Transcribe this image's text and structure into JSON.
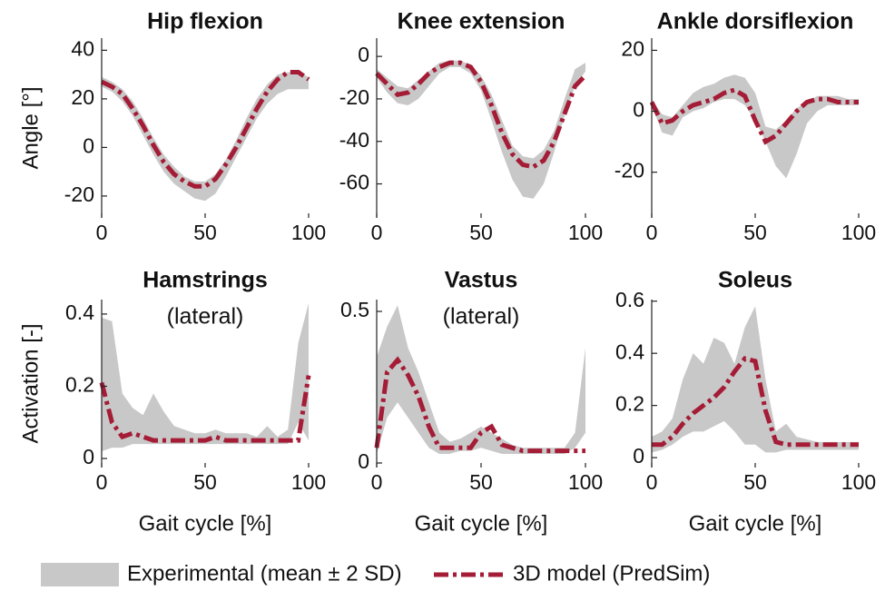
{
  "legend": [
    {
      "name": "Experimental (mean ± 2 SD)",
      "color": "#c8c8c8"
    },
    {
      "name": "3D model (PredSim)",
      "color": "#a51c36"
    }
  ],
  "chart_data": [
    {
      "type": "line",
      "title": "Hip flexion",
      "ylabel": "Angle [°]",
      "x": [
        0,
        5,
        10,
        15,
        20,
        25,
        30,
        35,
        40,
        45,
        50,
        55,
        60,
        65,
        70,
        75,
        80,
        85,
        90,
        95,
        100
      ],
      "band": {
        "lower": [
          25,
          23,
          19,
          13,
          5,
          -3,
          -10,
          -15,
          -18,
          -21,
          -22,
          -19,
          -12,
          -4,
          4,
          12,
          18,
          22,
          24,
          24,
          24
        ],
        "upper": [
          29,
          27,
          24,
          19,
          12,
          4,
          -3,
          -8,
          -12,
          -14,
          -14,
          -11,
          -5,
          3,
          12,
          20,
          26,
          30,
          31,
          31,
          29
        ]
      },
      "values": [
        27,
        25,
        22,
        16,
        9,
        1,
        -6,
        -11,
        -14,
        -16,
        -16,
        -13,
        -7,
        0,
        8,
        16,
        23,
        28,
        31,
        31,
        28
      ],
      "xlim": [
        0,
        100
      ],
      "xticks": [
        0,
        50,
        100
      ],
      "ylim": [
        -29,
        45
      ],
      "yticks": [
        -20,
        0,
        20,
        40
      ]
    },
    {
      "type": "line",
      "title": "Knee extension",
      "x": [
        0,
        5,
        10,
        15,
        20,
        25,
        30,
        35,
        40,
        45,
        50,
        55,
        60,
        65,
        70,
        75,
        80,
        85,
        90,
        95,
        100
      ],
      "band": {
        "lower": [
          -10,
          -17,
          -22,
          -23,
          -20,
          -14,
          -8,
          -5,
          -5,
          -8,
          -16,
          -30,
          -45,
          -58,
          -66,
          -67,
          -60,
          -45,
          -28,
          -14,
          -7
        ],
        "upper": [
          -6,
          -10,
          -14,
          -15,
          -11,
          -7,
          -3,
          -2,
          -2,
          -4,
          -9,
          -18,
          -30,
          -42,
          -47,
          -48,
          -44,
          -35,
          -20,
          -6,
          -3
        ]
      },
      "values": [
        -8,
        -13,
        -18,
        -17,
        -13,
        -8,
        -5,
        -3,
        -3,
        -5,
        -12,
        -23,
        -36,
        -46,
        -51,
        -52,
        -49,
        -40,
        -27,
        -14,
        -9
      ],
      "xlim": [
        0,
        100
      ],
      "xticks": [
        0,
        50,
        100
      ],
      "ylim": [
        -76,
        8.6
      ],
      "yticks": [
        -60,
        -40,
        -20,
        0
      ]
    },
    {
      "type": "line",
      "title": "Ankle dorsiflexion",
      "x": [
        0,
        5,
        10,
        15,
        20,
        25,
        30,
        35,
        40,
        45,
        50,
        55,
        60,
        65,
        70,
        75,
        80,
        85,
        90,
        95,
        100
      ],
      "band": {
        "lower": [
          2,
          -7,
          -8,
          -2,
          0,
          1,
          3,
          4,
          4,
          2,
          -3,
          -10,
          -18,
          -22,
          -14,
          -4,
          0,
          2,
          2,
          2,
          2
        ],
        "upper": [
          4,
          -1,
          -2,
          2,
          6,
          8,
          9,
          11,
          12,
          11,
          6,
          -5,
          -6,
          -3,
          1,
          3,
          5,
          5,
          5,
          4,
          4
        ]
      },
      "values": [
        3,
        -4,
        -3,
        0,
        2,
        3,
        4,
        6,
        7,
        5,
        -3,
        -10,
        -8,
        -4,
        0,
        3,
        4,
        4,
        3,
        3,
        3
      ],
      "xlim": [
        0,
        100
      ],
      "xticks": [
        0,
        50,
        100
      ],
      "ylim": [
        -35,
        24
      ],
      "yticks": [
        -20,
        0,
        20
      ]
    },
    {
      "type": "line",
      "title": "Hamstrings",
      "subtitle": "(lateral)",
      "ylabel": "Activation [-]",
      "xlabel": "Gait cycle [%]",
      "x": [
        0,
        5,
        10,
        15,
        20,
        25,
        30,
        35,
        40,
        45,
        50,
        55,
        60,
        65,
        70,
        75,
        80,
        85,
        90,
        95,
        100
      ],
      "band": {
        "lower": [
          0.02,
          0.03,
          0.03,
          0.04,
          0.04,
          0.04,
          0.04,
          0.04,
          0.04,
          0.04,
          0.04,
          0.04,
          0.04,
          0.04,
          0.04,
          0.04,
          0.04,
          0.04,
          0.04,
          0.1,
          0.05
        ],
        "upper": [
          0.39,
          0.38,
          0.18,
          0.14,
          0.12,
          0.18,
          0.13,
          0.09,
          0.08,
          0.07,
          0.07,
          0.08,
          0.07,
          0.07,
          0.07,
          0.06,
          0.09,
          0.06,
          0.08,
          0.32,
          0.43
        ]
      },
      "values": [
        0.21,
        0.1,
        0.06,
        0.07,
        0.06,
        0.05,
        0.05,
        0.05,
        0.05,
        0.05,
        0.05,
        0.06,
        0.05,
        0.05,
        0.05,
        0.05,
        0.05,
        0.05,
        0.05,
        0.05,
        0.23
      ],
      "xlim": [
        0,
        100
      ],
      "xticks": [
        0,
        50,
        100
      ],
      "ylim": [
        -0.025,
        0.44
      ],
      "yticks": [
        0,
        0.2,
        0.4
      ]
    },
    {
      "type": "line",
      "title": "Vastus",
      "subtitle": "(lateral)",
      "xlabel": "Gait cycle [%]",
      "x": [
        0,
        5,
        10,
        15,
        20,
        25,
        30,
        35,
        40,
        45,
        50,
        55,
        60,
        65,
        70,
        75,
        80,
        85,
        90,
        95,
        100
      ],
      "band": {
        "lower": [
          0.03,
          0.15,
          0.2,
          0.15,
          0.1,
          0.05,
          0.03,
          0.03,
          0.04,
          0.04,
          0.05,
          0.04,
          0.03,
          0.03,
          0.03,
          0.03,
          0.03,
          0.03,
          0.03,
          0.05,
          0.1
        ],
        "upper": [
          0.35,
          0.45,
          0.52,
          0.38,
          0.3,
          0.2,
          0.1,
          0.07,
          0.08,
          0.1,
          0.12,
          0.1,
          0.08,
          0.06,
          0.05,
          0.05,
          0.05,
          0.05,
          0.05,
          0.1,
          0.38
        ]
      },
      "values": [
        0.05,
        0.3,
        0.34,
        0.29,
        0.22,
        0.12,
        0.05,
        0.05,
        0.05,
        0.05,
        0.1,
        0.12,
        0.06,
        0.05,
        0.04,
        0.04,
        0.04,
        0.04,
        0.04,
        0.04,
        0.04
      ],
      "xlim": [
        0,
        100
      ],
      "xticks": [
        0,
        50,
        100
      ],
      "ylim": [
        -0.015,
        0.539
      ],
      "yticks": [
        0,
        0.5
      ]
    },
    {
      "type": "line",
      "title": "Soleus",
      "xlabel": "Gait cycle [%]",
      "x": [
        0,
        5,
        10,
        15,
        20,
        25,
        30,
        35,
        40,
        45,
        50,
        55,
        60,
        65,
        70,
        75,
        80,
        85,
        90,
        95,
        100
      ],
      "band": {
        "lower": [
          0.02,
          0.03,
          0.05,
          0.08,
          0.1,
          0.1,
          0.12,
          0.14,
          0.1,
          0.05,
          0.05,
          0.02,
          0.02,
          0.03,
          0.03,
          0.03,
          0.03,
          0.03,
          0.03,
          0.03,
          0.03
        ],
        "upper": [
          0.08,
          0.1,
          0.15,
          0.3,
          0.4,
          0.36,
          0.46,
          0.44,
          0.36,
          0.5,
          0.58,
          0.3,
          0.1,
          0.13,
          0.08,
          0.07,
          0.06,
          0.06,
          0.06,
          0.06,
          0.06
        ]
      },
      "values": [
        0.05,
        0.05,
        0.08,
        0.13,
        0.17,
        0.2,
        0.23,
        0.27,
        0.33,
        0.38,
        0.37,
        0.18,
        0.06,
        0.05,
        0.05,
        0.05,
        0.05,
        0.05,
        0.05,
        0.05,
        0.05
      ],
      "xlim": [
        0,
        100
      ],
      "xticks": [
        0,
        50,
        100
      ],
      "ylim": [
        -0.038,
        0.606
      ],
      "yticks": [
        0,
        0.2,
        0.4,
        0.6
      ]
    }
  ]
}
